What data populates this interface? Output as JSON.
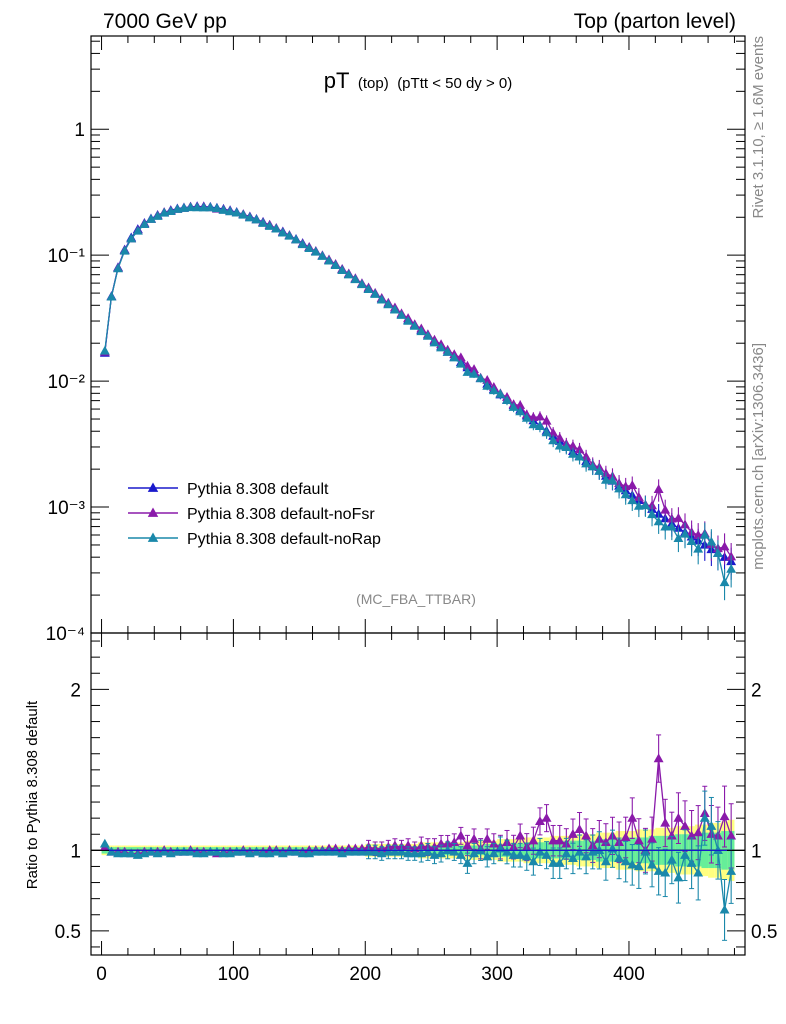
{
  "header": {
    "left": "7000 GeV pp",
    "right": "Top (parton level)"
  },
  "plot_title": {
    "main": "pT",
    "sub1": "(top)",
    "sub2": "(pTtt < 50 dy > 0)"
  },
  "side_labels": {
    "rivet": "Rivet 3.1.10, ≥ 1.6M events",
    "mcplots": "mcplots.cern.ch [arXiv:1306.3436]"
  },
  "analysis_label": "(MC_FBA_TTBAR)",
  "colors": {
    "default": "#1a1acc",
    "noFsr": "#8a1aaa",
    "noRap": "#1a88aa",
    "band_yellow": "#ffff80",
    "band_green": "#66ee99"
  },
  "chart_data": [
    {
      "type": "line",
      "yscale": "log",
      "ylim": [
        0.0001,
        5.5
      ],
      "xlim": [
        -8,
        488
      ],
      "ytick_labels": [
        "1",
        "10⁻¹",
        "10⁻²",
        "10⁻³",
        "10⁻⁴"
      ],
      "ytick_values": [
        1,
        0.1,
        0.01,
        0.001,
        0.0001
      ],
      "legend": {
        "placement": "lower-left",
        "entries": [
          "Pythia 8.308 default",
          "Pythia 8.308 default-noFsr",
          "Pythia 8.308 default-noRap"
        ]
      },
      "x": [
        2.5,
        7.5,
        12.5,
        17.5,
        22.5,
        27.5,
        32.5,
        37.5,
        42.5,
        47.5,
        52.5,
        57.5,
        62.5,
        67.5,
        72.5,
        77.5,
        82.5,
        87.5,
        92.5,
        97.5,
        102.5,
        107.5,
        112.5,
        117.5,
        122.5,
        127.5,
        132.5,
        137.5,
        142.5,
        147.5,
        152.5,
        157.5,
        162.5,
        167.5,
        172.5,
        177.5,
        182.5,
        187.5,
        192.5,
        197.5,
        202.5,
        207.5,
        212.5,
        217.5,
        222.5,
        227.5,
        232.5,
        237.5,
        242.5,
        247.5,
        252.5,
        257.5,
        262.5,
        267.5,
        272.5,
        277.5,
        282.5,
        287.5,
        292.5,
        297.5,
        302.5,
        307.5,
        312.5,
        317.5,
        322.5,
        327.5,
        332.5,
        337.5,
        342.5,
        347.5,
        352.5,
        357.5,
        362.5,
        367.5,
        372.5,
        377.5,
        382.5,
        387.5,
        392.5,
        397.5,
        402.5,
        407.5,
        412.5,
        417.5,
        422.5,
        427.5,
        432.5,
        437.5,
        442.5,
        447.5,
        452.5,
        457.5,
        462.5,
        467.5,
        472.5,
        477.5
      ],
      "series": [
        {
          "name": "Pythia 8.308 default",
          "values": [
            0.0167,
            0.0471,
            0.0799,
            0.1103,
            0.1377,
            0.1603,
            0.1794,
            0.1947,
            0.2079,
            0.2185,
            0.2272,
            0.2338,
            0.2382,
            0.2418,
            0.2436,
            0.2432,
            0.2411,
            0.2372,
            0.2321,
            0.2263,
            0.2192,
            0.2108,
            0.2023,
            0.1929,
            0.1832,
            0.1734,
            0.1633,
            0.1535,
            0.1434,
            0.1339,
            0.1242,
            0.1155,
            0.1072,
            0.0991,
            0.0911,
            0.0839,
            0.0773,
            0.0706,
            0.0647,
            0.0591,
            0.0541,
            0.0495,
            0.0451,
            0.0409,
            0.0372,
            0.0337,
            0.0306,
            0.0279,
            0.0253,
            0.023,
            0.0208,
            0.0188,
            0.017,
            0.0155,
            0.0141,
            0.0128,
            0.0116,
            0.0105,
            0.0095,
            0.0086,
            0.0078,
            0.0071,
            0.0064,
            0.0059,
            0.0053,
            0.00486,
            0.00442,
            0.00402,
            0.00366,
            0.00333,
            0.00304,
            0.00277,
            0.00253,
            0.0023,
            0.00211,
            0.00193,
            0.00176,
            0.00161,
            0.00147,
            0.00135,
            0.00124,
            0.00113,
            0.00104,
            0.00096,
            0.00088,
            0.00081,
            0.00074,
            0.00068,
            0.00063,
            0.00058,
            0.00054,
            0.0005,
            0.00046,
            0.00043,
            0.0004,
            0.00037
          ]
        },
        {
          "name": "Pythia 8.308 default-noFsr",
          "ratio": [
            1.02,
            0.99,
            0.99,
            0.99,
            0.98,
            0.98,
            0.99,
            0.99,
            0.99,
            1.0,
            0.99,
            0.99,
            0.99,
            1.0,
            0.99,
            0.99,
            0.99,
            0.98,
            0.99,
            0.99,
            0.99,
            1.0,
            0.99,
            0.99,
            0.99,
            1.0,
            1.0,
            0.99,
            1.0,
            0.99,
            0.99,
            1.0,
            1.0,
            1.0,
            1.01,
            1.01,
            1.0,
            1.01,
            1.01,
            1.01,
            1.02,
            1.01,
            1.01,
            1.02,
            1.03,
            1.02,
            1.03,
            1.01,
            1.03,
            1.02,
            1.02,
            1.04,
            1.04,
            1.05,
            1.09,
            1.03,
            1.07,
            1.01,
            1.07,
            1.04,
            1.02,
            1.05,
            1.02,
            1.09,
            1.02,
            1.06,
            1.18,
            1.2,
            1.06,
            1.06,
            1.04,
            1.1,
            1.13,
            1.09,
            1.03,
            1.07,
            1.05,
            1.09,
            1.05,
            1.08,
            1.2,
            1.06,
            1.0,
            1.07,
            1.57,
            1.17,
            1.09,
            1.2,
            1.15,
            1.09,
            1.11,
            1.23,
            1.1,
            1.09,
            1.21,
            1.09
          ]
        },
        {
          "name": "Pythia 8.308 default-noRap",
          "ratio": [
            1.04,
            0.99,
            0.98,
            0.98,
            0.98,
            0.97,
            0.98,
            0.99,
            0.98,
            0.99,
            0.98,
            0.99,
            0.99,
            0.99,
            0.98,
            0.98,
            0.99,
            0.99,
            0.98,
            0.98,
            0.99,
            0.99,
            0.98,
            0.99,
            0.98,
            0.98,
            0.99,
            0.98,
            0.99,
            0.99,
            0.98,
            0.98,
            0.99,
            0.99,
            0.99,
            0.99,
            0.98,
            0.99,
            0.99,
            0.99,
            0.99,
            0.99,
            0.98,
            0.99,
            0.99,
            0.99,
            0.98,
            0.98,
            0.98,
            0.99,
            0.97,
            0.98,
            1.0,
            0.99,
            0.97,
            0.92,
            0.98,
            1.0,
            0.96,
            0.98,
            1.01,
            0.99,
            0.97,
            0.97,
            0.96,
            0.93,
            0.99,
            0.97,
            0.92,
            0.92,
            0.98,
            0.95,
            0.99,
            0.96,
            0.99,
            1.0,
            0.93,
            1.01,
            0.95,
            0.93,
            0.91,
            0.9,
            0.99,
            0.91,
            0.87,
            0.86,
            0.94,
            0.83,
            0.97,
            0.92,
            0.86,
            1.2,
            1.15,
            1.0,
            0.63,
            0.87
          ]
        }
      ]
    },
    {
      "type": "line",
      "ylabel": "Ratio to Pythia 8.308 default",
      "ylim": [
        0.35,
        2.35
      ],
      "xlim": [
        -8,
        488
      ],
      "ytick_labels": [
        "0.5",
        "1",
        "2"
      ],
      "ytick_values": [
        0.5,
        1,
        2
      ],
      "xtick_labels": [
        "0",
        "100",
        "200",
        "300",
        "400"
      ],
      "xtick_values": [
        0,
        100,
        200,
        300,
        400
      ],
      "band_inner": [
        0.02,
        0.02,
        0.02,
        0.02,
        0.02,
        0.02,
        0.02,
        0.02,
        0.02,
        0.02,
        0.02,
        0.02,
        0.02,
        0.02,
        0.02,
        0.02,
        0.02,
        0.02,
        0.02,
        0.02,
        0.02,
        0.02,
        0.02,
        0.02,
        0.02,
        0.02,
        0.02,
        0.02,
        0.02,
        0.02,
        0.02,
        0.02,
        0.02,
        0.02,
        0.02,
        0.02,
        0.02,
        0.02,
        0.02,
        0.02,
        0.02,
        0.02,
        0.02,
        0.02,
        0.02,
        0.02,
        0.02,
        0.02,
        0.02,
        0.03,
        0.03,
        0.03,
        0.03,
        0.03,
        0.03,
        0.03,
        0.03,
        0.03,
        0.04,
        0.04,
        0.04,
        0.04,
        0.04,
        0.04,
        0.05,
        0.05,
        0.05,
        0.05,
        0.05,
        0.05,
        0.06,
        0.06,
        0.06,
        0.06,
        0.06,
        0.07,
        0.07,
        0.07,
        0.07,
        0.08,
        0.08,
        0.08,
        0.08,
        0.09,
        0.09,
        0.09,
        0.09,
        0.1,
        0.1,
        0.1,
        0.1,
        0.11,
        0.11,
        0.11,
        0.12,
        0.12
      ],
      "band_outer": [
        0.03,
        0.03,
        0.03,
        0.03,
        0.03,
        0.03,
        0.03,
        0.03,
        0.03,
        0.03,
        0.03,
        0.03,
        0.03,
        0.03,
        0.03,
        0.03,
        0.03,
        0.03,
        0.03,
        0.03,
        0.03,
        0.03,
        0.03,
        0.03,
        0.03,
        0.03,
        0.03,
        0.03,
        0.03,
        0.03,
        0.03,
        0.03,
        0.03,
        0.03,
        0.03,
        0.03,
        0.03,
        0.03,
        0.03,
        0.03,
        0.04,
        0.04,
        0.04,
        0.04,
        0.04,
        0.04,
        0.04,
        0.04,
        0.05,
        0.05,
        0.05,
        0.05,
        0.05,
        0.05,
        0.05,
        0.06,
        0.06,
        0.06,
        0.06,
        0.06,
        0.07,
        0.07,
        0.07,
        0.07,
        0.08,
        0.08,
        0.08,
        0.08,
        0.09,
        0.09,
        0.09,
        0.09,
        0.1,
        0.1,
        0.1,
        0.11,
        0.11,
        0.11,
        0.12,
        0.12,
        0.12,
        0.13,
        0.13,
        0.13,
        0.14,
        0.14,
        0.14,
        0.15,
        0.15,
        0.15,
        0.16,
        0.16,
        0.17,
        0.17,
        0.18,
        0.19
      ]
    }
  ]
}
